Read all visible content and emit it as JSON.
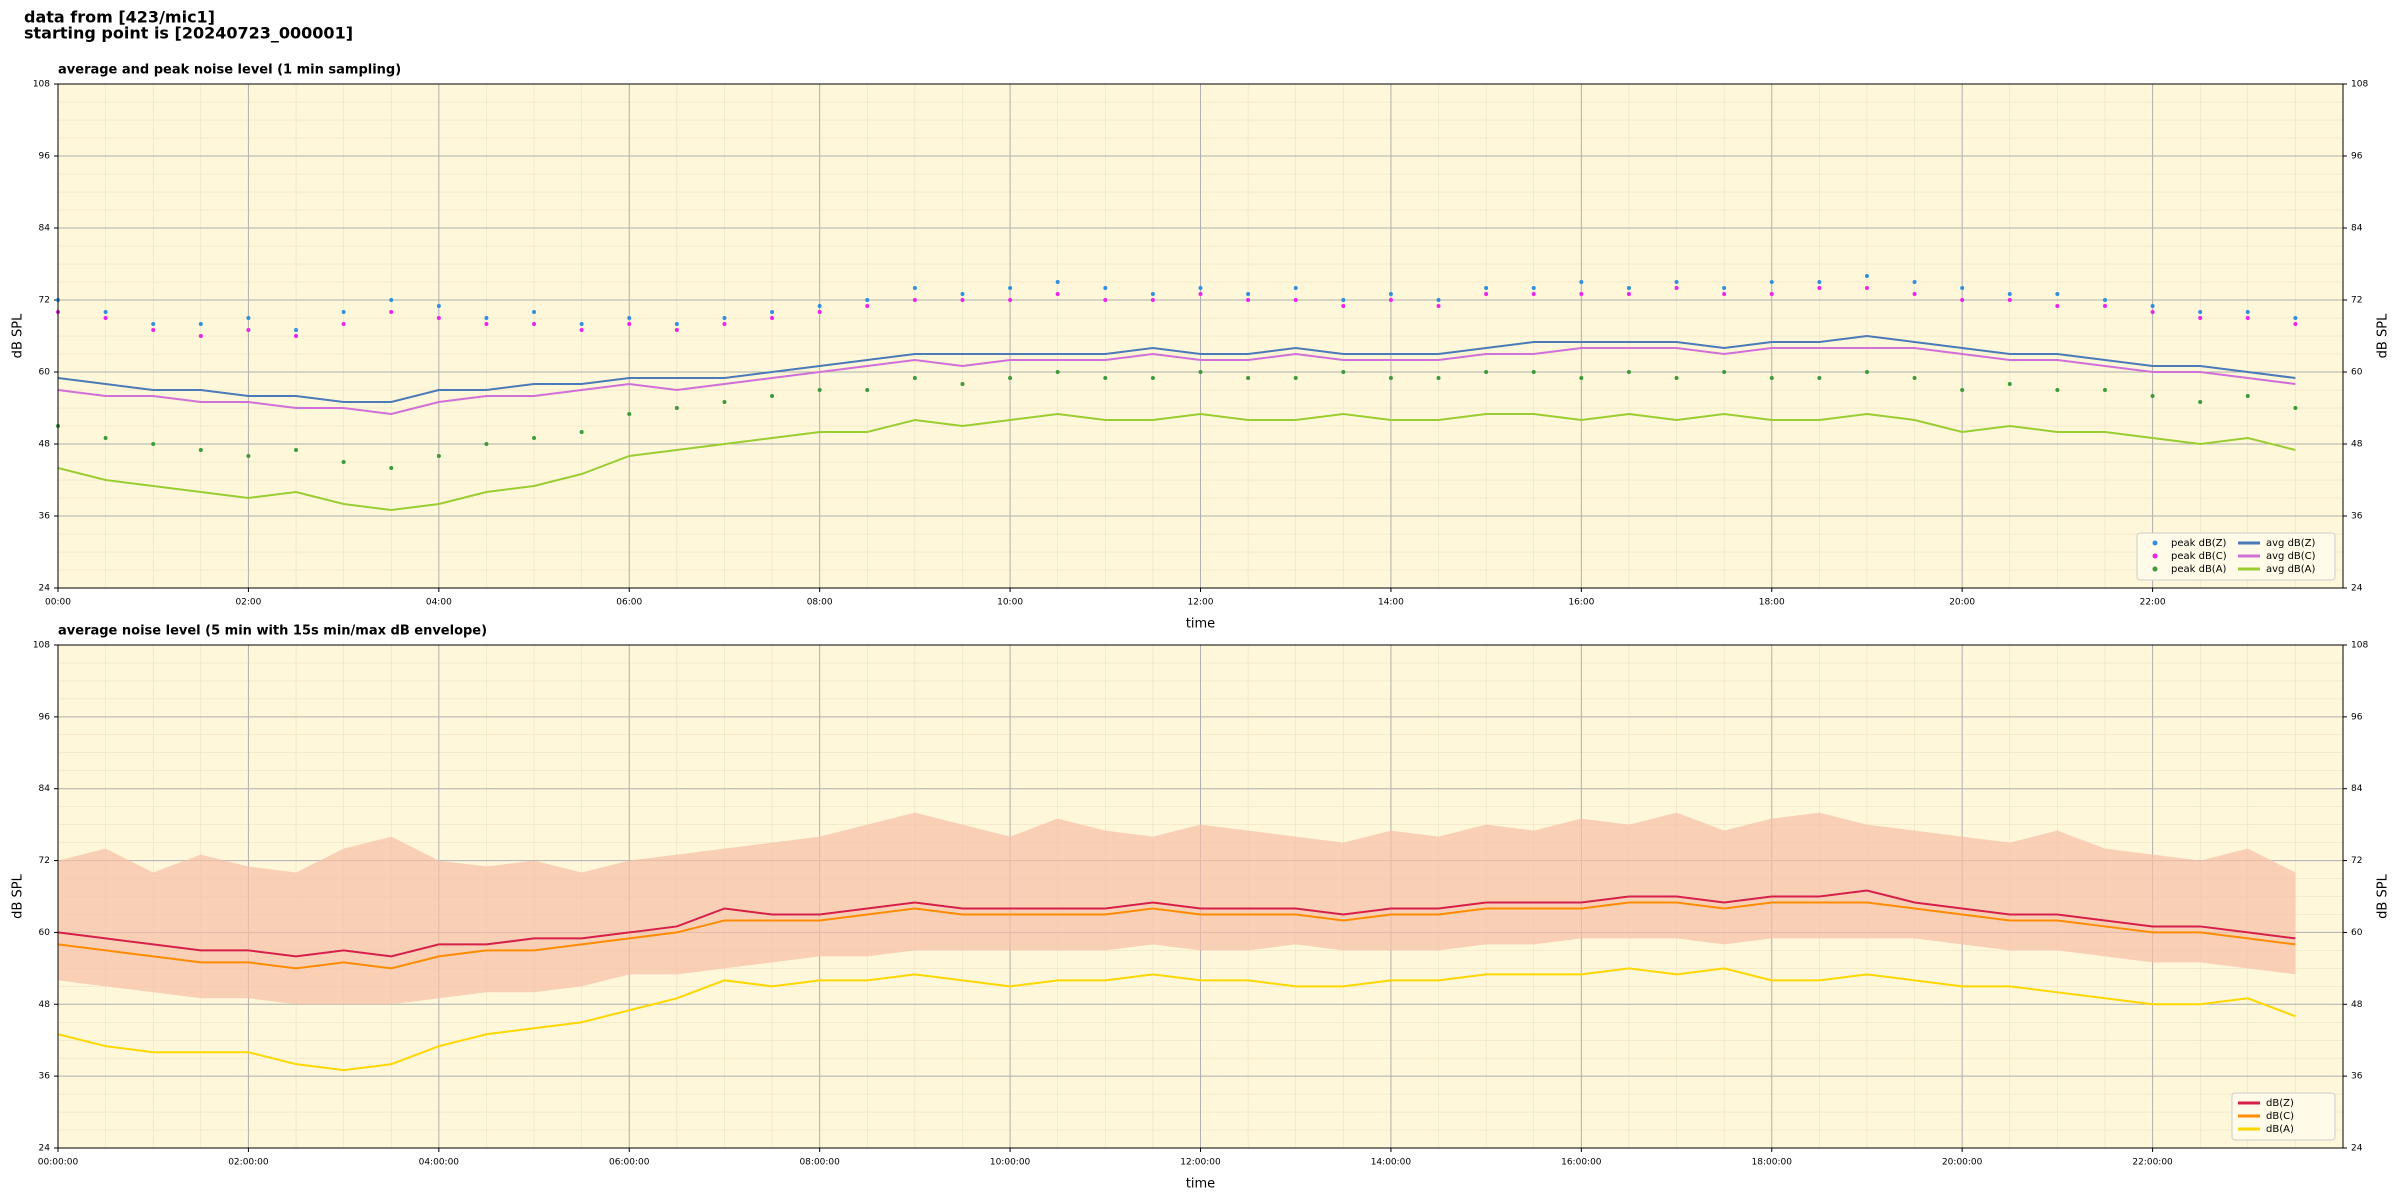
{
  "header": {
    "line1": "data from [423/mic1]",
    "line2": "starting point is [20240723_000001]"
  },
  "chart_data": [
    {
      "type": "line",
      "title": "average and peak noise level (1 min sampling)",
      "x_label": "time",
      "y_label": "dB SPL",
      "xlim": [
        0,
        24
      ],
      "ylim": [
        24,
        108
      ],
      "xticks": [
        {
          "value": 0,
          "label": "00:00"
        },
        {
          "value": 2,
          "label": "02:00"
        },
        {
          "value": 4,
          "label": "04:00"
        },
        {
          "value": 6,
          "label": "06:00"
        },
        {
          "value": 8,
          "label": "08:00"
        },
        {
          "value": 10,
          "label": "10:00"
        },
        {
          "value": 12,
          "label": "12:00"
        },
        {
          "value": 14,
          "label": "14:00"
        },
        {
          "value": 16,
          "label": "16:00"
        },
        {
          "value": 18,
          "label": "18:00"
        },
        {
          "value": 20,
          "label": "20:00"
        },
        {
          "value": 22,
          "label": "22:00"
        }
      ],
      "yticks": [
        24,
        36,
        48,
        60,
        72,
        84,
        96,
        108
      ],
      "grid": true,
      "legend": "lower right",
      "legend_columns": 2,
      "x": [
        0,
        0.5,
        1,
        1.5,
        2,
        2.5,
        3,
        3.5,
        4,
        4.5,
        5,
        5.5,
        6,
        6.5,
        7,
        7.5,
        8,
        8.5,
        9,
        9.5,
        10,
        10.5,
        11,
        11.5,
        12,
        12.5,
        13,
        13.5,
        14,
        14.5,
        15,
        15.5,
        16,
        16.5,
        17,
        17.5,
        18,
        18.5,
        19,
        19.5,
        20,
        20.5,
        21,
        21.5,
        22,
        22.5,
        23,
        23.5
      ],
      "series": [
        {
          "name": "peak dB(Z)",
          "style": "markers",
          "color": "#2f8fe0",
          "values": [
            72,
            70,
            68,
            68,
            69,
            67,
            70,
            72,
            71,
            69,
            70,
            68,
            69,
            68,
            69,
            70,
            71,
            72,
            74,
            73,
            74,
            75,
            74,
            73,
            74,
            73,
            74,
            72,
            73,
            72,
            74,
            74,
            75,
            74,
            75,
            74,
            75,
            75,
            76,
            75,
            74,
            73,
            73,
            72,
            71,
            70,
            70,
            69
          ]
        },
        {
          "name": "peak dB(C)",
          "style": "markers",
          "color": "#ee22ee",
          "values": [
            70,
            69,
            67,
            66,
            67,
            66,
            68,
            70,
            69,
            68,
            68,
            67,
            68,
            67,
            68,
            69,
            70,
            71,
            72,
            72,
            72,
            73,
            72,
            72,
            73,
            72,
            72,
            71,
            72,
            71,
            73,
            73,
            73,
            73,
            74,
            73,
            73,
            74,
            74,
            73,
            72,
            72,
            71,
            71,
            70,
            69,
            69,
            68
          ]
        },
        {
          "name": "peak dB(A)",
          "style": "markers",
          "color": "#3c9a3c",
          "values": [
            51,
            49,
            48,
            47,
            46,
            47,
            45,
            44,
            46,
            48,
            49,
            50,
            53,
            54,
            55,
            56,
            57,
            57,
            59,
            58,
            59,
            60,
            59,
            59,
            60,
            59,
            59,
            60,
            59,
            59,
            60,
            60,
            59,
            60,
            59,
            60,
            59,
            59,
            60,
            59,
            57,
            58,
            57,
            57,
            56,
            55,
            56,
            54
          ]
        },
        {
          "name": "avg dB(Z)",
          "style": "line",
          "color": "#4a7ab8",
          "values": [
            59,
            58,
            57,
            57,
            56,
            56,
            55,
            55,
            57,
            57,
            58,
            58,
            59,
            59,
            59,
            60,
            61,
            62,
            63,
            63,
            63,
            63,
            63,
            64,
            63,
            63,
            64,
            63,
            63,
            63,
            64,
            65,
            65,
            65,
            65,
            64,
            65,
            65,
            66,
            65,
            64,
            63,
            63,
            62,
            61,
            61,
            60,
            59
          ]
        },
        {
          "name": "avg dB(C)",
          "style": "line",
          "color": "#d070d8",
          "values": [
            57,
            56,
            56,
            55,
            55,
            54,
            54,
            53,
            55,
            56,
            56,
            57,
            58,
            57,
            58,
            59,
            60,
            61,
            62,
            61,
            62,
            62,
            62,
            63,
            62,
            62,
            63,
            62,
            62,
            62,
            63,
            63,
            64,
            64,
            64,
            63,
            64,
            64,
            64,
            64,
            63,
            62,
            62,
            61,
            60,
            60,
            59,
            58
          ]
        },
        {
          "name": "avg dB(A)",
          "style": "line",
          "color": "#9acd32",
          "values": [
            44,
            42,
            41,
            40,
            39,
            40,
            38,
            37,
            38,
            40,
            41,
            43,
            46,
            47,
            48,
            49,
            50,
            50,
            52,
            51,
            52,
            53,
            52,
            52,
            53,
            52,
            52,
            53,
            52,
            52,
            53,
            53,
            52,
            53,
            52,
            53,
            52,
            52,
            53,
            52,
            50,
            51,
            50,
            50,
            49,
            48,
            49,
            47
          ]
        }
      ]
    },
    {
      "type": "line",
      "title": "average noise level (5 min with 15s min/max dB envelope)",
      "x_label": "time",
      "y_label": "dB SPL",
      "xlim": [
        0,
        24
      ],
      "ylim": [
        24,
        108
      ],
      "xticks": [
        {
          "value": 0,
          "label": "00:00:00"
        },
        {
          "value": 2,
          "label": "02:00:00"
        },
        {
          "value": 4,
          "label": "04:00:00"
        },
        {
          "value": 6,
          "label": "06:00:00"
        },
        {
          "value": 8,
          "label": "08:00:00"
        },
        {
          "value": 10,
          "label": "10:00:00"
        },
        {
          "value": 12,
          "label": "12:00:00"
        },
        {
          "value": 14,
          "label": "14:00:00"
        },
        {
          "value": 16,
          "label": "16:00:00"
        },
        {
          "value": 18,
          "label": "18:00:00"
        },
        {
          "value": 20,
          "label": "20:00:00"
        },
        {
          "value": 22,
          "label": "22:00:00"
        }
      ],
      "yticks": [
        24,
        36,
        48,
        60,
        72,
        84,
        96,
        108
      ],
      "grid": true,
      "legend": "lower right",
      "legend_columns": 1,
      "x": [
        0,
        0.5,
        1,
        1.5,
        2,
        2.5,
        3,
        3.5,
        4,
        4.5,
        5,
        5.5,
        6,
        6.5,
        7,
        7.5,
        8,
        8.5,
        9,
        9.5,
        10,
        10.5,
        11,
        11.5,
        12,
        12.5,
        13,
        13.5,
        14,
        14.5,
        15,
        15.5,
        16,
        16.5,
        17,
        17.5,
        18,
        18.5,
        19,
        19.5,
        20,
        20.5,
        21,
        21.5,
        22,
        22.5,
        23,
        23.5
      ],
      "envelope": {
        "color": "#f6bfa6",
        "min": [
          52,
          51,
          50,
          49,
          49,
          48,
          48,
          48,
          49,
          50,
          50,
          51,
          53,
          53,
          54,
          55,
          56,
          56,
          57,
          57,
          57,
          57,
          57,
          58,
          57,
          57,
          58,
          57,
          57,
          57,
          58,
          58,
          59,
          59,
          59,
          58,
          59,
          59,
          59,
          59,
          58,
          57,
          57,
          56,
          55,
          55,
          54,
          53
        ],
        "max": [
          72,
          74,
          70,
          73,
          71,
          70,
          74,
          76,
          72,
          71,
          72,
          70,
          72,
          73,
          74,
          75,
          76,
          78,
          80,
          78,
          76,
          79,
          77,
          76,
          78,
          77,
          76,
          75,
          77,
          76,
          78,
          77,
          79,
          78,
          80,
          77,
          79,
          80,
          78,
          77,
          76,
          75,
          77,
          74,
          73,
          72,
          74,
          70
        ]
      },
      "series": [
        {
          "name": "dB(Z)",
          "color": "#d6204a",
          "values": [
            60,
            59,
            58,
            57,
            57,
            56,
            57,
            56,
            58,
            58,
            59,
            59,
            60,
            61,
            64,
            63,
            63,
            64,
            65,
            64,
            64,
            64,
            64,
            65,
            64,
            64,
            64,
            63,
            64,
            64,
            65,
            65,
            65,
            66,
            66,
            65,
            66,
            66,
            67,
            65,
            64,
            63,
            63,
            62,
            61,
            61,
            60,
            59
          ]
        },
        {
          "name": "dB(C)",
          "color": "#ff8c00",
          "values": [
            58,
            57,
            56,
            55,
            55,
            54,
            55,
            54,
            56,
            57,
            57,
            58,
            59,
            60,
            62,
            62,
            62,
            63,
            64,
            63,
            63,
            63,
            63,
            64,
            63,
            63,
            63,
            62,
            63,
            63,
            64,
            64,
            64,
            65,
            65,
            64,
            65,
            65,
            65,
            64,
            63,
            62,
            62,
            61,
            60,
            60,
            59,
            58
          ]
        },
        {
          "name": "dB(A)",
          "color": "#ffd700",
          "values": [
            43,
            41,
            40,
            40,
            40,
            38,
            37,
            38,
            41,
            43,
            44,
            45,
            47,
            49,
            52,
            51,
            52,
            52,
            53,
            52,
            51,
            52,
            52,
            53,
            52,
            52,
            51,
            51,
            52,
            52,
            53,
            53,
            53,
            54,
            53,
            54,
            52,
            52,
            53,
            52,
            51,
            51,
            50,
            49,
            48,
            48,
            49,
            46
          ]
        }
      ]
    }
  ]
}
